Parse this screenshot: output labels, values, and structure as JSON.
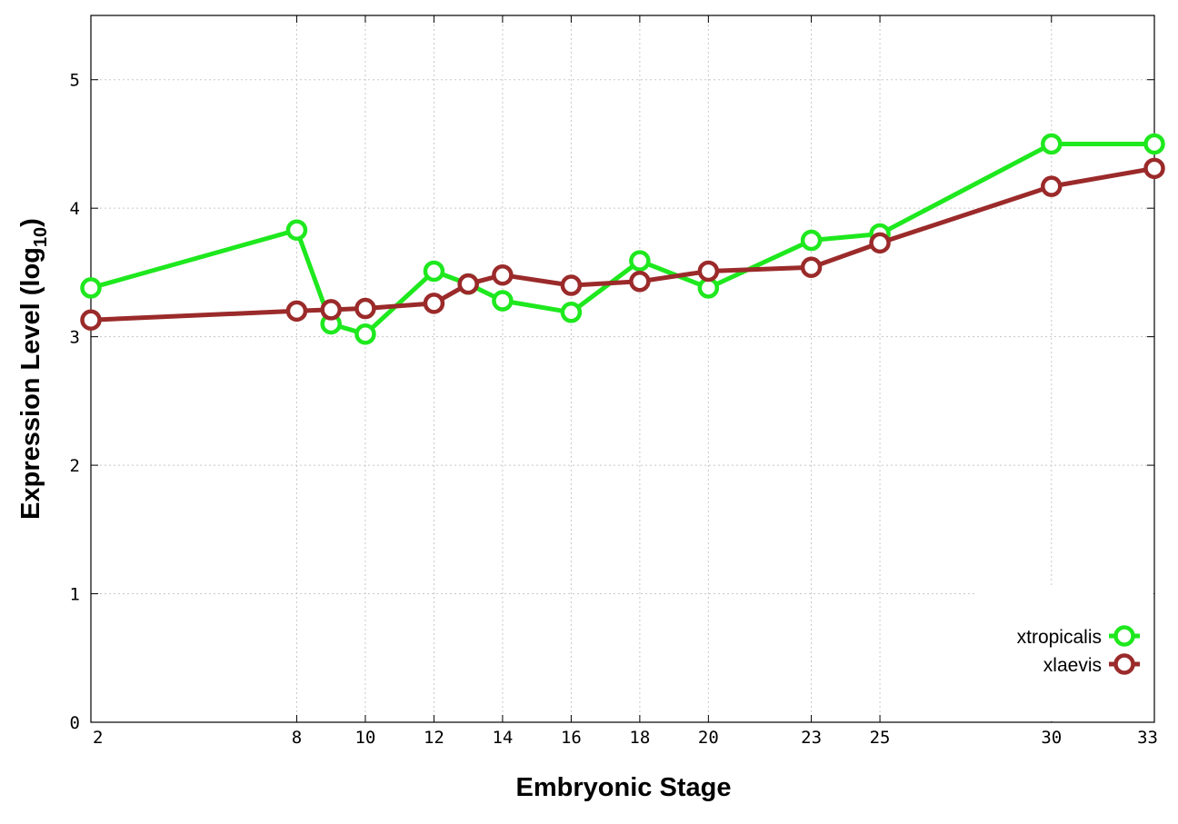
{
  "chart_data": {
    "type": "line",
    "title": "",
    "xlabel": "Embryonic Stage",
    "ylabel_main": "Expression Level (log",
    "ylabel_sub": "10",
    "ylabel_close": ")",
    "xlim": [
      2,
      33
    ],
    "ylim": [
      0,
      5.5
    ],
    "x_ticks": [
      2,
      8,
      10,
      12,
      14,
      16,
      18,
      20,
      23,
      25,
      30,
      33
    ],
    "y_ticks": [
      0,
      1,
      2,
      3,
      4,
      5
    ],
    "grid": true,
    "legend_position": "bottom-right",
    "series": [
      {
        "name": "xtropicalis",
        "color": "#1ee81e",
        "x": [
          2,
          8,
          9,
          10,
          12,
          13,
          14,
          16,
          18,
          20,
          23,
          25,
          30,
          33
        ],
        "y": [
          3.38,
          3.83,
          3.1,
          3.02,
          3.51,
          3.41,
          3.28,
          3.19,
          3.59,
          3.38,
          3.75,
          3.8,
          4.5,
          4.5
        ]
      },
      {
        "name": "xlaevis",
        "color": "#9b2a2a",
        "x": [
          2,
          8,
          9,
          10,
          12,
          13,
          14,
          16,
          18,
          20,
          23,
          25,
          30,
          33
        ],
        "y": [
          3.13,
          3.2,
          3.21,
          3.22,
          3.26,
          3.41,
          3.48,
          3.4,
          3.43,
          3.51,
          3.54,
          3.73,
          4.17,
          4.31
        ]
      }
    ]
  }
}
